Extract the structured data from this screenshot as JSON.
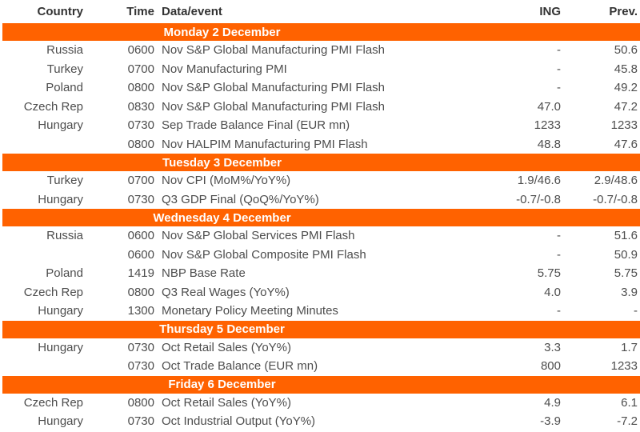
{
  "table": {
    "columns": {
      "country": "Country",
      "time": "Time",
      "event": "Data/event",
      "ing": "ING",
      "prev": "Prev."
    },
    "sections": [
      {
        "title": "Monday 2 December",
        "rows": [
          {
            "country": "Russia",
            "time": "0600",
            "event": "Nov S&P Global Manufacturing PMI Flash",
            "ing": "-",
            "prev": "50.6"
          },
          {
            "country": "Turkey",
            "time": "0700",
            "event": "Nov Manufacturing PMI",
            "ing": "-",
            "prev": "45.8"
          },
          {
            "country": "Poland",
            "time": "0800",
            "event": "Nov S&P Global Manufacturing PMI Flash",
            "ing": "-",
            "prev": "49.2"
          },
          {
            "country": "Czech Rep",
            "time": "0830",
            "event": "Nov S&P Global Manufacturing PMI Flash",
            "ing": "47.0",
            "prev": "47.2"
          },
          {
            "country": "Hungary",
            "time": "0730",
            "event": "Sep Trade Balance Final (EUR mn)",
            "ing": "1233",
            "prev": "1233"
          },
          {
            "country": "",
            "time": "0800",
            "event": "Nov HALPIM Manufacturing PMI Flash",
            "ing": "48.8",
            "prev": "47.6"
          }
        ]
      },
      {
        "title": "Tuesday 3 December",
        "rows": [
          {
            "country": "Turkey",
            "time": "0700",
            "event": "Nov CPI (MoM%/YoY%)",
            "ing": "1.9/46.6",
            "prev": "2.9/48.6"
          },
          {
            "country": "Hungary",
            "time": "0730",
            "event": "Q3 GDP Final (QoQ%/YoY%)",
            "ing": "-0.7/-0.8",
            "prev": "-0.7/-0.8"
          }
        ]
      },
      {
        "title": "Wednesday 4 December",
        "rows": [
          {
            "country": "Russia",
            "time": "0600",
            "event": "Nov S&P Global Services PMI Flash",
            "ing": "-",
            "prev": "51.6"
          },
          {
            "country": "",
            "time": "0600",
            "event": "Nov S&P Global Composite PMI Flash",
            "ing": "-",
            "prev": "50.9"
          },
          {
            "country": "Poland",
            "time": "1419",
            "event": "NBP Base Rate",
            "ing": "5.75",
            "prev": "5.75"
          },
          {
            "country": "Czech Rep",
            "time": "0800",
            "event": "Q3 Real Wages (YoY%)",
            "ing": "4.0",
            "prev": "3.9"
          },
          {
            "country": "Hungary",
            "time": "1300",
            "event": "Monetary Policy Meeting Minutes",
            "ing": "-",
            "prev": "-"
          }
        ]
      },
      {
        "title": "Thursday 5 December",
        "rows": [
          {
            "country": "Hungary",
            "time": "0730",
            "event": "Oct Retail Sales (YoY%)",
            "ing": "3.3",
            "prev": "1.7"
          },
          {
            "country": "",
            "time": "0730",
            "event": "Oct Trade Balance (EUR mn)",
            "ing": "800",
            "prev": "1233"
          }
        ]
      },
      {
        "title": "Friday 6 December",
        "rows": [
          {
            "country": "Czech Rep",
            "time": "0800",
            "event": "Oct Retail Sales (YoY%)",
            "ing": "4.9",
            "prev": "6.1"
          },
          {
            "country": "Hungary",
            "time": "0730",
            "event": "Oct Industrial Output (YoY%)",
            "ing": "-3.9",
            "prev": "-7.2"
          }
        ]
      }
    ]
  },
  "colors": {
    "accent_orange": "#FF6200",
    "header_text": "#333333",
    "body_text": "#4d4d4d",
    "band_text": "#FFFFFF"
  }
}
